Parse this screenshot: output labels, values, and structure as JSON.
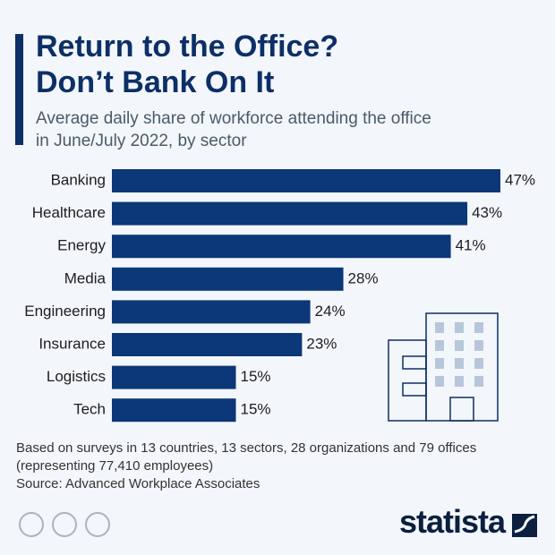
{
  "chart_data": {
    "type": "bar",
    "orientation": "horizontal",
    "title": "Return to the Office?\nDon’t Bank On It",
    "subtitle": "Average daily share of workforce attending the office\nin June/July 2022, by sector",
    "categories": [
      "Banking",
      "Healthcare",
      "Energy",
      "Media",
      "Engineering",
      "Insurance",
      "Logistics",
      "Tech"
    ],
    "values": [
      47,
      43,
      41,
      28,
      24,
      23,
      15,
      15
    ],
    "value_labels": [
      "47%",
      "43%",
      "41%",
      "28%",
      "24%",
      "23%",
      "15%",
      "15%"
    ],
    "color": "#0c3778",
    "note": "Based on surveys in 13 countries, 13 sectors, 28 organizations and 79 offices\n(representing 77,410 employees)",
    "source": "Source: Advanced Workplace Associates",
    "brand": "statista"
  }
}
